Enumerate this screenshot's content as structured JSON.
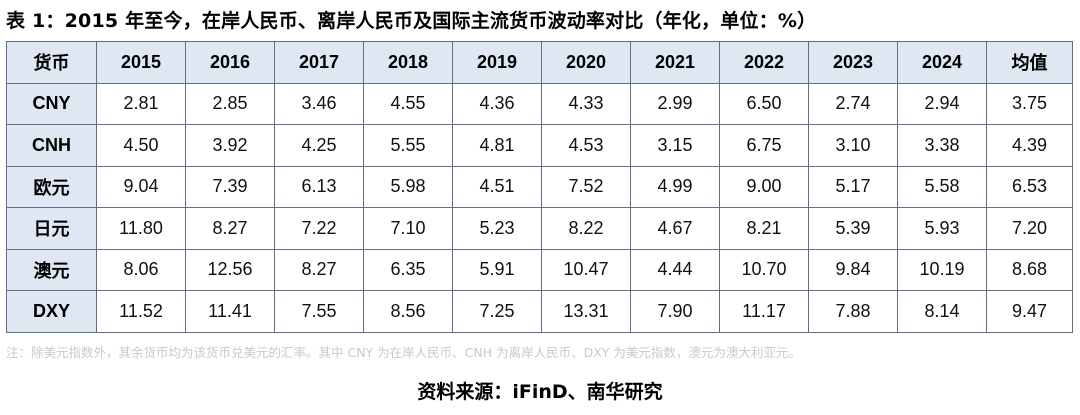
{
  "title": "表 1：2015 年至今，在岸人民币、离岸人民币及国际主流货币波动率对比（年化，单位：%）",
  "table": {
    "header": [
      "货币",
      "2015",
      "2016",
      "2017",
      "2018",
      "2019",
      "2020",
      "2021",
      "2022",
      "2023",
      "2024",
      "均值"
    ],
    "rows": [
      {
        "name": "CNY",
        "values": [
          "2.81",
          "2.85",
          "3.46",
          "4.55",
          "4.36",
          "4.33",
          "2.99",
          "6.50",
          "2.74",
          "2.94",
          "3.75"
        ]
      },
      {
        "name": "CNH",
        "values": [
          "4.50",
          "3.92",
          "4.25",
          "5.55",
          "4.81",
          "4.53",
          "3.15",
          "6.75",
          "3.10",
          "3.38",
          "4.39"
        ]
      },
      {
        "name": "欧元",
        "values": [
          "9.04",
          "7.39",
          "6.13",
          "5.98",
          "4.51",
          "7.52",
          "4.99",
          "9.00",
          "5.17",
          "5.58",
          "6.53"
        ]
      },
      {
        "name": "日元",
        "values": [
          "11.80",
          "8.27",
          "7.22",
          "7.10",
          "5.23",
          "8.22",
          "4.67",
          "8.21",
          "5.39",
          "5.93",
          "7.20"
        ]
      },
      {
        "name": "澳元",
        "values": [
          "8.06",
          "12.56",
          "8.27",
          "6.35",
          "5.91",
          "10.47",
          "4.44",
          "10.70",
          "9.84",
          "10.19",
          "8.68"
        ]
      },
      {
        "name": "DXY",
        "values": [
          "11.52",
          "11.41",
          "7.55",
          "8.56",
          "7.25",
          "13.31",
          "7.90",
          "11.17",
          "7.88",
          "8.14",
          "9.47"
        ]
      }
    ]
  },
  "note": "注：除美元指数外，其余货币均为该货币兑美元的汇率。其中 CNY 为在岸人民币、CNH 为离岸人民币、DXY 为美元指数，澳元为澳大利亚元。",
  "source": "资料来源：iFinD、南华研究",
  "colors": {
    "header_bg": "#dfe7f3",
    "border": "#5f6f85",
    "note_text": "#c9c9c9"
  }
}
